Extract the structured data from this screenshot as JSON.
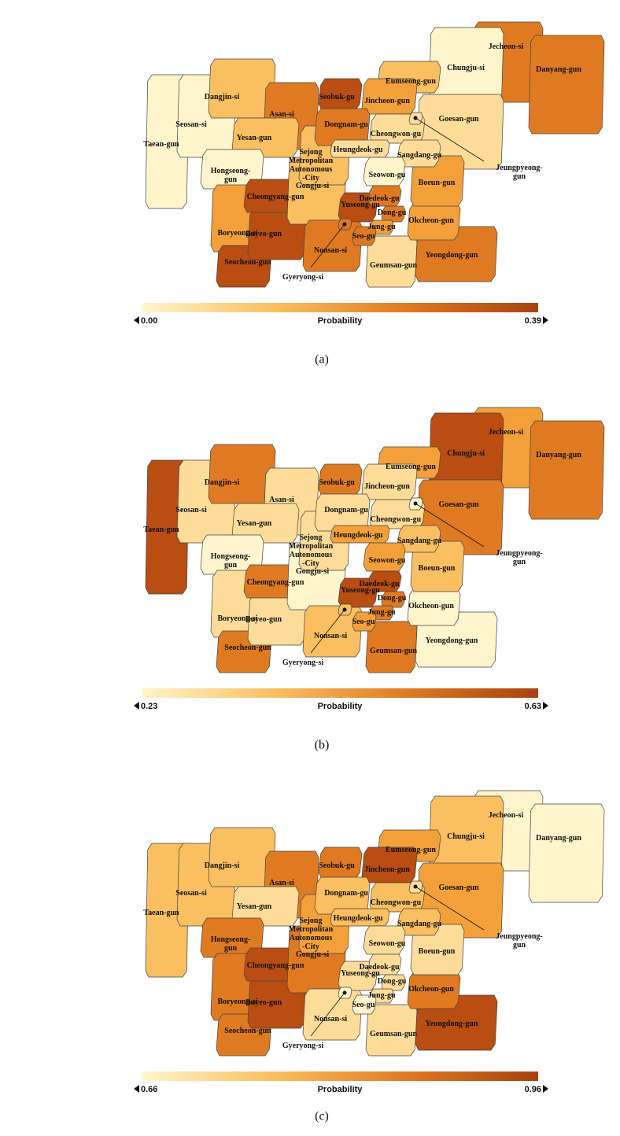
{
  "panels": [
    {
      "caption": "(a)",
      "colorbar": {
        "label": "Probability",
        "min": {
          "value": 0,
          "label": "0.00"
        },
        "max": 0.39,
        "colors": [
          "#fff5cc",
          "#f9bf60",
          "#e07a22",
          "#a8420f"
        ]
      },
      "regions": [
        {
          "label": "Jecheon-si",
          "color": "#e07a22"
        },
        {
          "label": "Danyang-gun",
          "color": "#e07a22"
        },
        {
          "label": "Chungju-si",
          "color": "#fff5cc"
        },
        {
          "label": "Eumseong-gun",
          "color": "#f9bf60"
        },
        {
          "label": "Goesan-gun",
          "color": "#fcdc98"
        },
        {
          "label": "Taean-gun",
          "color": "#fff5cc"
        },
        {
          "label": "Seosan-si",
          "color": "#fff5cc"
        },
        {
          "label": "Dangjin-si",
          "color": "#f9bf60"
        },
        {
          "label": "Asan-si",
          "color": "#e07a22"
        },
        {
          "label": "Yesan-gun",
          "color": "#f9bf60"
        },
        {
          "label": "Hongseong-\ngun",
          "color": "#fff5cc"
        },
        {
          "label": "Boryeong-si",
          "color": "#f3a03a"
        },
        {
          "label": "Seocheon-gun",
          "color": "#b94d12"
        },
        {
          "label": "Buyeo-gun",
          "color": "#b94d12"
        },
        {
          "label": "Cheongyang-gun",
          "color": "#b94d12"
        },
        {
          "label": "Gongju-si",
          "color": "#f9bf60"
        },
        {
          "label": "Sejong\nMetropolitan\nAutonomous\n-City",
          "color": "#f9bf60"
        },
        {
          "label": "Nonsan-si",
          "color": "#e07a22"
        },
        {
          "label": "Geumsan-gun",
          "color": "#fcdc98"
        },
        {
          "label": "Yeongdong-gun",
          "color": "#e07a22"
        },
        {
          "label": "Okcheon-gun",
          "color": "#f3a03a"
        },
        {
          "label": "Boeun-gun",
          "color": "#f3a03a"
        },
        {
          "label": "Jincheon-gun",
          "color": "#f3a03a"
        },
        {
          "label": "Seobuk-gu",
          "color": "#b94d12"
        },
        {
          "label": "Dongnam-gu",
          "color": "#e07a22"
        },
        {
          "label": "Cheongwon-gu",
          "color": "#fcdc98"
        },
        {
          "label": "Heungdeok-gu",
          "color": "#fcdc98"
        },
        {
          "label": "Sangdang-gu",
          "color": "#fcdc98"
        },
        {
          "label": "Seowon-gu",
          "color": "#fff5cc"
        },
        {
          "label": "Yuseong-gu",
          "color": "#b94d12"
        },
        {
          "label": "Daedeok-gu",
          "color": "#e07a22"
        },
        {
          "label": "Dong-gu",
          "color": "#e07a22"
        },
        {
          "label": "Jung-gu",
          "color": "#f3a03a"
        },
        {
          "label": "Seo-gu",
          "color": "#e07a22"
        },
        {
          "label": "Jeungpyeong-\ngun",
          "color": "#fcdc98"
        },
        {
          "label": "Gyeryong-si",
          "color": "#e07a22"
        }
      ]
    },
    {
      "caption": "(b)",
      "colorbar": {
        "label": "Probability",
        "min": 0.23,
        "max": 0.63,
        "colors": [
          "#fff5cc",
          "#f9bf60",
          "#e07a22",
          "#a8420f"
        ]
      },
      "regions": [
        {
          "label": "Jecheon-si",
          "color": "#f3a03a"
        },
        {
          "label": "Danyang-gun",
          "color": "#e07a22"
        },
        {
          "label": "Chungju-si",
          "color": "#b94d12"
        },
        {
          "label": "Eumseong-gun",
          "color": "#f3a03a"
        },
        {
          "label": "Goesan-gun",
          "color": "#e07a22"
        },
        {
          "label": "Taean-gun",
          "color": "#b94d12"
        },
        {
          "label": "Seosan-si",
          "color": "#fcdc98"
        },
        {
          "label": "Dangjin-si",
          "color": "#e07a22"
        },
        {
          "label": "Asan-si",
          "color": "#fcdc98"
        },
        {
          "label": "Yesan-gun",
          "color": "#fcdc98"
        },
        {
          "label": "Hongseong-\ngun",
          "color": "#fff5cc"
        },
        {
          "label": "Boryeong-si",
          "color": "#fcdc98"
        },
        {
          "label": "Seocheon-gun",
          "color": "#e07a22"
        },
        {
          "label": "Buyeo-gun",
          "color": "#fcdc98"
        },
        {
          "label": "Cheongyang-gun",
          "color": "#e07a22"
        },
        {
          "label": "Gongju-si",
          "color": "#fff5cc"
        },
        {
          "label": "Sejong\nMetropolitan\nAutonomous\n-City",
          "color": "#fcdc98"
        },
        {
          "label": "Nonsan-si",
          "color": "#f9bf60"
        },
        {
          "label": "Geumsan-gun",
          "color": "#e07a22"
        },
        {
          "label": "Yeongdong-gun",
          "color": "#fff5cc"
        },
        {
          "label": "Okcheon-gun",
          "color": "#fff5cc"
        },
        {
          "label": "Boeun-gun",
          "color": "#f9bf60"
        },
        {
          "label": "Jincheon-gun",
          "color": "#fcdc98"
        },
        {
          "label": "Seobuk-gu",
          "color": "#e07a22"
        },
        {
          "label": "Dongnam-gu",
          "color": "#fcdc98"
        },
        {
          "label": "Cheongwon-gu",
          "color": "#fcdc98"
        },
        {
          "label": "Heungdeok-gu",
          "color": "#f3a03a"
        },
        {
          "label": "Sangdang-gu",
          "color": "#f9bf60"
        },
        {
          "label": "Seowon-gu",
          "color": "#f3a03a"
        },
        {
          "label": "Yuseong-gu",
          "color": "#b94d12"
        },
        {
          "label": "Daedeok-gu",
          "color": "#b94d12"
        },
        {
          "label": "Dong-gu",
          "color": "#e07a22"
        },
        {
          "label": "Jung-gu",
          "color": "#e07a22"
        },
        {
          "label": "Seo-gu",
          "color": "#f3a03a"
        },
        {
          "label": "Jeungpyeong-\ngun",
          "color": "#fff5cc"
        },
        {
          "label": "Gyeryong-si",
          "color": "#f9bf60"
        }
      ]
    },
    {
      "caption": "(c)",
      "colorbar": {
        "label": "Probability",
        "min": 0.66,
        "max": 0.96,
        "colors": [
          "#fff5cc",
          "#f9bf60",
          "#e07a22",
          "#a8420f"
        ]
      },
      "regions": [
        {
          "label": "Jecheon-si",
          "color": "#fff5cc"
        },
        {
          "label": "Danyang-gun",
          "color": "#fff5cc"
        },
        {
          "label": "Chungju-si",
          "color": "#f9bf60"
        },
        {
          "label": "Eumseong-gun",
          "color": "#f3a03a"
        },
        {
          "label": "Goesan-gun",
          "color": "#f3a03a"
        },
        {
          "label": "Taean-gun",
          "color": "#f9bf60"
        },
        {
          "label": "Seosan-si",
          "color": "#f9bf60"
        },
        {
          "label": "Dangjin-si",
          "color": "#f9bf60"
        },
        {
          "label": "Asan-si",
          "color": "#e07a22"
        },
        {
          "label": "Yesan-gun",
          "color": "#fcdc98"
        },
        {
          "label": "Hongseong-\ngun",
          "color": "#e07a22"
        },
        {
          "label": "Boryeong-si",
          "color": "#e07a22"
        },
        {
          "label": "Seocheon-gun",
          "color": "#e07a22"
        },
        {
          "label": "Buyeo-gun",
          "color": "#b94d12"
        },
        {
          "label": "Cheongyang-gun",
          "color": "#b94d12"
        },
        {
          "label": "Gongju-si",
          "color": "#e07a22"
        },
        {
          "label": "Sejong\nMetropolitan\nAutonomous\n-City",
          "color": "#f3a03a"
        },
        {
          "label": "Nonsan-si",
          "color": "#fcdc98"
        },
        {
          "label": "Geumsan-gun",
          "color": "#fcdc98"
        },
        {
          "label": "Yeongdong-gun",
          "color": "#b94d12"
        },
        {
          "label": "Okcheon-gun",
          "color": "#e07a22"
        },
        {
          "label": "Boeun-gun",
          "color": "#fcdc98"
        },
        {
          "label": "Jincheon-gun",
          "color": "#b94d12"
        },
        {
          "label": "Seobuk-gu",
          "color": "#e07a22"
        },
        {
          "label": "Dongnam-gu",
          "color": "#f9bf60"
        },
        {
          "label": "Cheongwon-gu",
          "color": "#f9bf60"
        },
        {
          "label": "Heungdeok-gu",
          "color": "#f9bf60"
        },
        {
          "label": "Sangdang-gu",
          "color": "#f9bf60"
        },
        {
          "label": "Seowon-gu",
          "color": "#fcdc98"
        },
        {
          "label": "Yuseong-gu",
          "color": "#fcdc98"
        },
        {
          "label": "Daedeok-gu",
          "color": "#fcdc98"
        },
        {
          "label": "Dong-gu",
          "color": "#fcdc98"
        },
        {
          "label": "Jung-gu",
          "color": "#fcdc98"
        },
        {
          "label": "Seo-gu",
          "color": "#fff5cc"
        },
        {
          "label": "Jeungpyeong-\ngun",
          "color": "#fcdc98"
        },
        {
          "label": "Gyeryong-si",
          "color": "#fff5cc"
        }
      ]
    }
  ]
}
